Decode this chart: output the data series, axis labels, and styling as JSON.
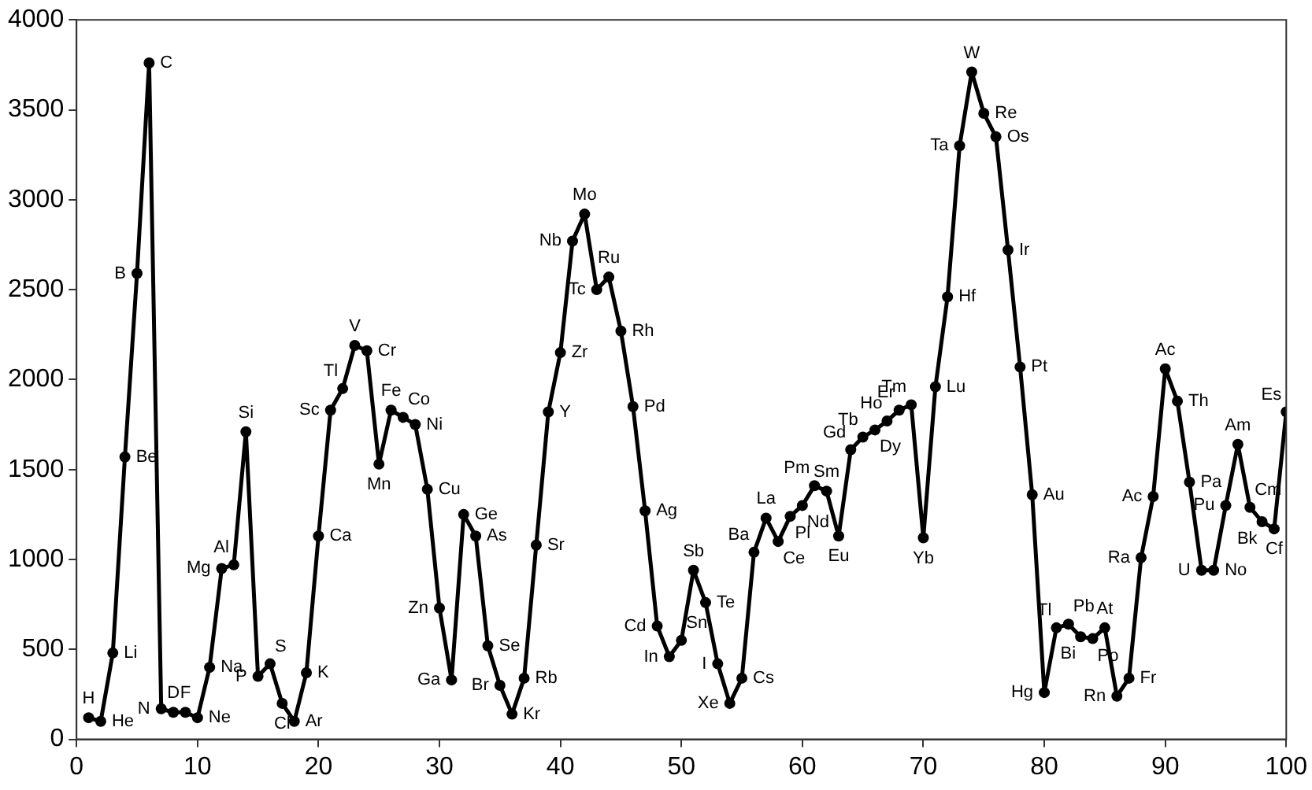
{
  "chart_data": {
    "type": "line",
    "x": [
      1,
      2,
      3,
      4,
      5,
      6,
      7,
      8,
      9,
      10,
      11,
      12,
      13,
      14,
      15,
      16,
      17,
      18,
      19,
      20,
      21,
      22,
      23,
      24,
      25,
      26,
      27,
      28,
      29,
      30,
      31,
      32,
      33,
      34,
      35,
      36,
      37,
      38,
      39,
      40,
      41,
      42,
      43,
      44,
      45,
      46,
      47,
      48,
      49,
      50,
      51,
      52,
      53,
      54,
      55,
      56,
      57,
      58,
      59,
      60,
      61,
      62,
      63,
      64,
      65,
      66,
      67,
      68,
      69,
      70,
      71,
      72,
      73,
      74,
      75,
      76,
      77,
      78,
      79,
      80,
      81,
      82,
      83,
      84,
      85,
      86,
      87,
      88,
      89,
      90,
      91,
      92,
      93,
      94,
      95,
      96,
      97,
      98,
      99,
      100
    ],
    "series": [
      {
        "color": "#000000",
        "values": [
          120,
          100,
          480,
          1570,
          2590,
          3760,
          170,
          150,
          150,
          120,
          400,
          950,
          970,
          1710,
          350,
          420,
          200,
          100,
          370,
          1130,
          1830,
          1950,
          2190,
          2160,
          1530,
          1830,
          1790,
          1750,
          1390,
          730,
          330,
          1250,
          1130,
          520,
          300,
          140,
          340,
          1080,
          1820,
          2150,
          2770,
          2920,
          2500,
          2570,
          2270,
          1850,
          1270,
          630,
          460,
          550,
          940,
          760,
          420,
          200,
          340,
          1040,
          1230,
          1100,
          1240,
          1300,
          1410,
          1380,
          1130,
          1610,
          1680,
          1720,
          1770,
          1830,
          1860,
          1120,
          1960,
          2460,
          3300,
          3710,
          3480,
          3350,
          2720,
          2070,
          1360,
          260,
          620,
          640,
          570,
          560,
          620,
          240,
          340,
          1010,
          1350,
          2060,
          1880,
          1430,
          940,
          940,
          1300,
          1640,
          1290,
          1210,
          1170,
          1820
        ]
      }
    ],
    "annotations": [
      {
        "text": "H",
        "x": 1,
        "y": 120
      },
      {
        "text": "He",
        "x": 2,
        "y": 100
      },
      {
        "text": "Li",
        "x": 3,
        "y": 480
      },
      {
        "text": "Be",
        "x": 4,
        "y": 1570
      },
      {
        "text": "B",
        "x": 5,
        "y": 2590
      },
      {
        "text": "C",
        "x": 6,
        "y": 3760
      },
      {
        "text": "N",
        "x": 7,
        "y": 170
      },
      {
        "text": "D",
        "x": 8,
        "y": 150
      },
      {
        "text": "F",
        "x": 9,
        "y": 150
      },
      {
        "text": "Ne",
        "x": 10,
        "y": 120
      },
      {
        "text": "Na",
        "x": 11,
        "y": 400
      },
      {
        "text": "Mg",
        "x": 12,
        "y": 950
      },
      {
        "text": "Al",
        "x": 13,
        "y": 970
      },
      {
        "text": "Si",
        "x": 14,
        "y": 1710
      },
      {
        "text": "P",
        "x": 15,
        "y": 350
      },
      {
        "text": "S",
        "x": 16,
        "y": 420
      },
      {
        "text": "Cl",
        "x": 17,
        "y": 200
      },
      {
        "text": "Ar",
        "x": 18,
        "y": 100
      },
      {
        "text": "K",
        "x": 19,
        "y": 370
      },
      {
        "text": "Ca",
        "x": 20,
        "y": 1130
      },
      {
        "text": "Sc",
        "x": 21,
        "y": 1830
      },
      {
        "text": "Tl",
        "x": 22,
        "y": 1950
      },
      {
        "text": "V",
        "x": 23,
        "y": 2190
      },
      {
        "text": "Cr",
        "x": 24,
        "y": 2160
      },
      {
        "text": "Mn",
        "x": 25,
        "y": 1530
      },
      {
        "text": "Fe",
        "x": 26,
        "y": 1830
      },
      {
        "text": "Co",
        "x": 27,
        "y": 1790
      },
      {
        "text": "Ni",
        "x": 28,
        "y": 1750
      },
      {
        "text": "Cu",
        "x": 29,
        "y": 1390
      },
      {
        "text": "Zn",
        "x": 30,
        "y": 730
      },
      {
        "text": "Ga",
        "x": 31,
        "y": 330
      },
      {
        "text": "Ge",
        "x": 32,
        "y": 1250
      },
      {
        "text": "As",
        "x": 33,
        "y": 1130
      },
      {
        "text": "Se",
        "x": 34,
        "y": 520
      },
      {
        "text": "Br",
        "x": 35,
        "y": 300
      },
      {
        "text": "Kr",
        "x": 36,
        "y": 140
      },
      {
        "text": "Rb",
        "x": 37,
        "y": 340
      },
      {
        "text": "Sr",
        "x": 38,
        "y": 1080
      },
      {
        "text": "Y",
        "x": 39,
        "y": 1820
      },
      {
        "text": "Zr",
        "x": 40,
        "y": 2150
      },
      {
        "text": "Nb",
        "x": 41,
        "y": 2770
      },
      {
        "text": "Mo",
        "x": 42,
        "y": 2920
      },
      {
        "text": "Tc",
        "x": 43,
        "y": 2500
      },
      {
        "text": "Ru",
        "x": 44,
        "y": 2570
      },
      {
        "text": "Rh",
        "x": 45,
        "y": 2270
      },
      {
        "text": "Pd",
        "x": 46,
        "y": 1850
      },
      {
        "text": "Ag",
        "x": 47,
        "y": 1270
      },
      {
        "text": "Cd",
        "x": 48,
        "y": 630
      },
      {
        "text": "In",
        "x": 49,
        "y": 460
      },
      {
        "text": "Sn",
        "x": 50,
        "y": 550
      },
      {
        "text": "Sb",
        "x": 51,
        "y": 940
      },
      {
        "text": "Te",
        "x": 52,
        "y": 760
      },
      {
        "text": "I",
        "x": 53,
        "y": 420
      },
      {
        "text": "Xe",
        "x": 54,
        "y": 200
      },
      {
        "text": "Cs",
        "x": 55,
        "y": 340
      },
      {
        "text": "Ba",
        "x": 56,
        "y": 1040
      },
      {
        "text": "La",
        "x": 57,
        "y": 1230
      },
      {
        "text": "Ce",
        "x": 58,
        "y": 1100
      },
      {
        "text": "Pl",
        "x": 59,
        "y": 1240
      },
      {
        "text": "Nd",
        "x": 60,
        "y": 1300
      },
      {
        "text": "Pm",
        "x": 61,
        "y": 1410
      },
      {
        "text": "Sm",
        "x": 62,
        "y": 1380
      },
      {
        "text": "Eu",
        "x": 63,
        "y": 1130
      },
      {
        "text": "Gd",
        "x": 64,
        "y": 1610
      },
      {
        "text": "Tb",
        "x": 65,
        "y": 1680
      },
      {
        "text": "Dy",
        "x": 66,
        "y": 1720
      },
      {
        "text": "Ho",
        "x": 67,
        "y": 1770
      },
      {
        "text": "Er",
        "x": 68,
        "y": 1830
      },
      {
        "text": "Tm",
        "x": 69,
        "y": 1860
      },
      {
        "text": "Yb",
        "x": 70,
        "y": 1120
      },
      {
        "text": "Lu",
        "x": 71,
        "y": 1960
      },
      {
        "text": "Hf",
        "x": 72,
        "y": 2460
      },
      {
        "text": "Ta",
        "x": 73,
        "y": 3300
      },
      {
        "text": "W",
        "x": 74,
        "y": 3710
      },
      {
        "text": "Re",
        "x": 75,
        "y": 3480
      },
      {
        "text": "Os",
        "x": 76,
        "y": 3350
      },
      {
        "text": "Ir",
        "x": 77,
        "y": 2720
      },
      {
        "text": "Pt",
        "x": 78,
        "y": 2070
      },
      {
        "text": "Au",
        "x": 79,
        "y": 1360
      },
      {
        "text": "Hg",
        "x": 80,
        "y": 260
      },
      {
        "text": "Tl",
        "x": 81,
        "y": 620
      },
      {
        "text": "Pb",
        "x": 82,
        "y": 640
      },
      {
        "text": "Bi",
        "x": 83,
        "y": 570
      },
      {
        "text": "Po",
        "x": 84,
        "y": 560
      },
      {
        "text": "At",
        "x": 85,
        "y": 620
      },
      {
        "text": "Rn",
        "x": 86,
        "y": 240
      },
      {
        "text": "Fr",
        "x": 87,
        "y": 340
      },
      {
        "text": "Ra",
        "x": 88,
        "y": 1010
      },
      {
        "text": "Ac",
        "x": 89,
        "y": 1350
      },
      {
        "text": "Ac",
        "x": 90,
        "y": 2060
      },
      {
        "text": "Th",
        "x": 91,
        "y": 1880
      },
      {
        "text": "Pa",
        "x": 92,
        "y": 1430
      },
      {
        "text": "U",
        "x": 93,
        "y": 940
      },
      {
        "text": "No",
        "x": 94,
        "y": 940
      },
      {
        "text": "Pu",
        "x": 95,
        "y": 1300
      },
      {
        "text": "Am",
        "x": 96,
        "y": 1640
      },
      {
        "text": "Cm",
        "x": 97,
        "y": 1290
      },
      {
        "text": "Bk",
        "x": 98,
        "y": 1210
      },
      {
        "text": "Cf",
        "x": 99,
        "y": 1170
      },
      {
        "text": "Es",
        "x": 100,
        "y": 1820
      }
    ],
    "xlim": [
      0,
      100
    ],
    "xticks": [
      0,
      10,
      20,
      30,
      40,
      50,
      60,
      70,
      80,
      90,
      100
    ],
    "ylim": [
      0,
      4000
    ],
    "yticks": [
      0,
      500,
      1000,
      1500,
      2000,
      2500,
      3000,
      3500,
      4000
    ],
    "grid": false,
    "legend": false,
    "marker": "circle",
    "line_style": "solid"
  }
}
